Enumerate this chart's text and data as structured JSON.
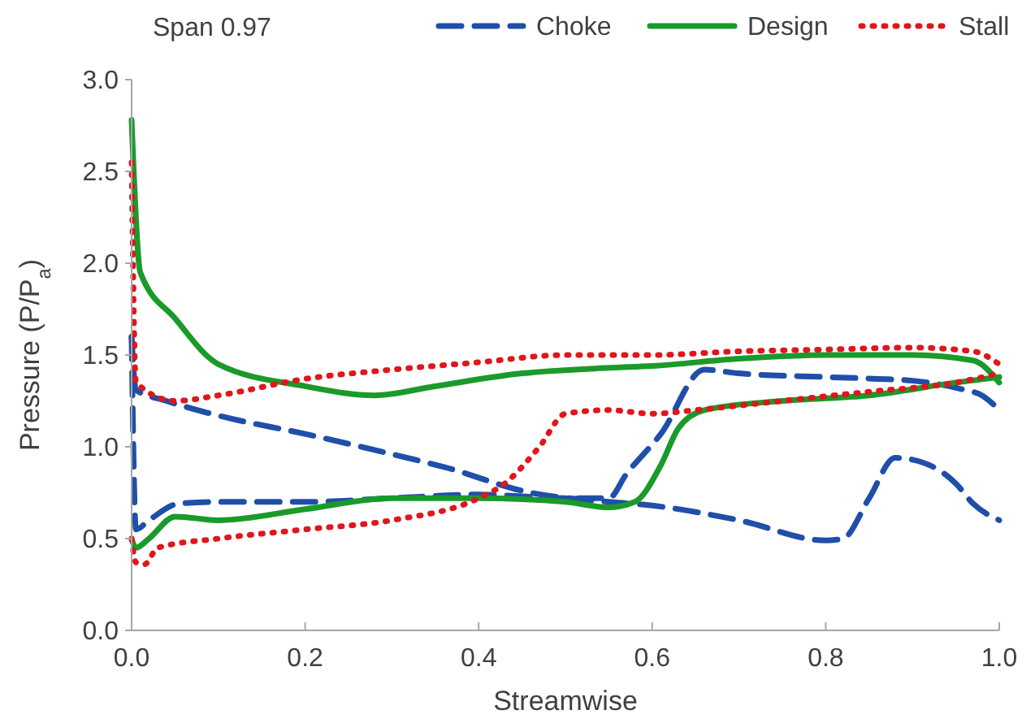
{
  "chart_data": {
    "type": "line",
    "title": "Span 0.97",
    "xlabel": "Streamwise",
    "ylabel": "Pressure (P/P$_{a}$)",
    "legend": "top",
    "grid": false,
    "xlim": [
      0,
      1
    ],
    "xticks": [
      {
        "value": 0,
        "label": "0.0"
      },
      {
        "value": 0.2,
        "label": "0.2"
      },
      {
        "value": 0.4,
        "label": "0.4"
      },
      {
        "value": 0.6,
        "label": "0.6"
      },
      {
        "value": 0.8,
        "label": "0.8"
      },
      {
        "value": 1,
        "label": "1.0"
      }
    ],
    "ylim": [
      0,
      3
    ],
    "yticks": [
      {
        "value": 0,
        "label": "0.0"
      },
      {
        "value": 0.5,
        "label": "0.5"
      },
      {
        "value": 1,
        "label": "1.0"
      },
      {
        "value": 1.5,
        "label": "1.5"
      },
      {
        "value": 2,
        "label": "2.0"
      },
      {
        "value": 2.5,
        "label": "2.5"
      },
      {
        "value": 3,
        "label": "3.0"
      }
    ],
    "series": [
      {
        "name": "Choke",
        "color": "#1f4fa8",
        "line_style": "dashed",
        "x": [
          0,
          0.005,
          0.04,
          0.1,
          0.2,
          0.3,
          0.36,
          0.46,
          0.55,
          0.6,
          0.7,
          0.8,
          0.82,
          0.85,
          0.88,
          0.9,
          0.95,
          0.97,
          1
        ],
        "values": [
          1.6,
          1.31,
          1.25,
          1.17,
          1.07,
          0.96,
          0.89,
          0.75,
          0.7,
          0.68,
          0.6,
          0.49,
          0.5,
          0.72,
          0.94,
          0.93,
          0.8,
          0.69,
          0.6
        ]
      },
      {
        "color": "#1f4fa8",
        "line_style": "dashed",
        "x": [
          0,
          0.005,
          0.02,
          0.054,
          0.1,
          0.2,
          0.3,
          0.4,
          0.5,
          0.55,
          0.57,
          0.61,
          0.66,
          0.7,
          0.8,
          0.86,
          0.9,
          0.96,
          0.98,
          1
        ],
        "values": [
          1.6,
          0.55,
          0.6,
          0.69,
          0.7,
          0.7,
          0.72,
          0.74,
          0.72,
          0.72,
          0.85,
          1.07,
          1.42,
          1.4,
          1.38,
          1.37,
          1.36,
          1.31,
          1.28,
          1.2
        ]
      },
      {
        "name": "Design",
        "color": "#1a9a2a",
        "line_style": "solid",
        "x": [
          0,
          0.01,
          0.05,
          0.1,
          0.2,
          0.28,
          0.35,
          0.45,
          0.55,
          0.6,
          0.7,
          0.8,
          0.9,
          0.97,
          1
        ],
        "values": [
          2.78,
          1.95,
          1.7,
          1.45,
          1.33,
          1.28,
          1.33,
          1.4,
          1.43,
          1.44,
          1.48,
          1.5,
          1.5,
          1.47,
          1.35
        ]
      },
      {
        "color": "#1a9a2a",
        "line_style": "solid",
        "x": [
          0,
          0.005,
          0.02,
          0.05,
          0.1,
          0.2,
          0.3,
          0.4,
          0.5,
          0.55,
          0.58,
          0.61,
          0.63,
          0.66,
          0.75,
          0.85,
          0.95,
          1
        ],
        "values": [
          0.5,
          0.45,
          0.5,
          0.62,
          0.6,
          0.66,
          0.72,
          0.72,
          0.7,
          0.67,
          0.7,
          0.9,
          1.1,
          1.2,
          1.25,
          1.28,
          1.35,
          1.38
        ]
      },
      {
        "name": "Stall",
        "color": "#e0161b",
        "line_style": "dotted",
        "x": [
          0,
          0.005,
          0.05,
          0.1,
          0.2,
          0.3,
          0.4,
          0.5,
          0.6,
          0.7,
          0.8,
          0.9,
          0.97,
          1
        ],
        "values": [
          2.55,
          1.35,
          1.25,
          1.28,
          1.37,
          1.42,
          1.46,
          1.5,
          1.5,
          1.52,
          1.53,
          1.54,
          1.52,
          1.45
        ]
      },
      {
        "color": "#e0161b",
        "line_style": "dotted",
        "x": [
          0,
          0.005,
          0.015,
          0.03,
          0.1,
          0.2,
          0.3,
          0.4,
          0.43,
          0.47,
          0.5,
          0.55,
          0.6,
          0.65,
          0.75,
          0.85,
          0.95,
          1
        ],
        "values": [
          0.5,
          0.37,
          0.36,
          0.45,
          0.5,
          0.55,
          0.6,
          0.72,
          0.8,
          1,
          1.18,
          1.2,
          1.18,
          1.2,
          1.25,
          1.3,
          1.35,
          1.4
        ]
      }
    ]
  }
}
